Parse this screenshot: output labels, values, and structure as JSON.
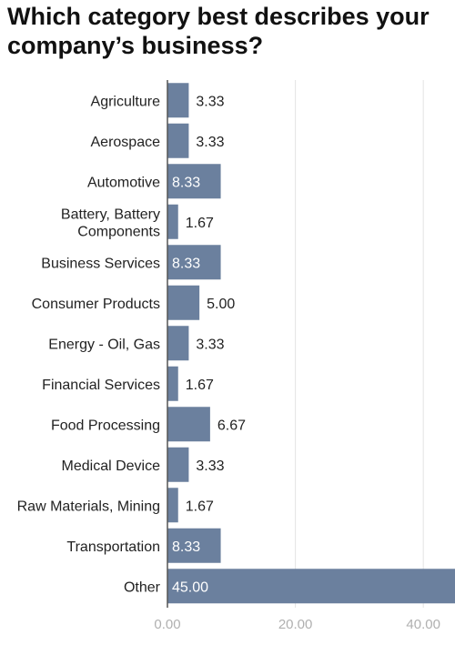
{
  "chart_data": {
    "type": "bar",
    "orientation": "horizontal",
    "title": "Which category best describes your company’s business?",
    "categories": [
      "Agriculture",
      "Aerospace",
      "Automotive",
      "Battery, Battery Components",
      "Business Services",
      "Consumer Products",
      "Energy - Oil, Gas",
      "Financial Services",
      "Food Processing",
      "Medical Device",
      "Raw Materials, Mining",
      "Transportation",
      "Other"
    ],
    "category_lines": [
      [
        "Agriculture"
      ],
      [
        "Aerospace"
      ],
      [
        "Automotive"
      ],
      [
        "Battery, Battery",
        "Components"
      ],
      [
        "Business Services"
      ],
      [
        "Consumer Products"
      ],
      [
        "Energy - Oil, Gas"
      ],
      [
        "Financial Services"
      ],
      [
        "Food Processing"
      ],
      [
        "Medical Device"
      ],
      [
        "Raw Materials, Mining"
      ],
      [
        "Transportation"
      ],
      [
        "Other"
      ]
    ],
    "values": [
      3.33,
      3.33,
      8.33,
      1.67,
      8.33,
      5.0,
      3.33,
      1.67,
      6.67,
      3.33,
      1.67,
      8.33,
      45.0
    ],
    "value_labels": [
      "3.33",
      "3.33",
      "8.33",
      "1.67",
      "8.33",
      "5.00",
      "3.33",
      "1.67",
      "6.67",
      "3.33",
      "1.67",
      "8.33",
      "45.00"
    ],
    "x_ticks": [
      0,
      20,
      40
    ],
    "x_tick_labels": [
      "0.00",
      "20.00",
      "40.00"
    ],
    "xlim": [
      0,
      45
    ],
    "grid": true,
    "bar_color": "#6b809e",
    "label_inside_color": "#ffffff",
    "label_outside_color": "#222222",
    "grid_color": "#e3e3e3",
    "tick_color": "#b0b0b0"
  }
}
